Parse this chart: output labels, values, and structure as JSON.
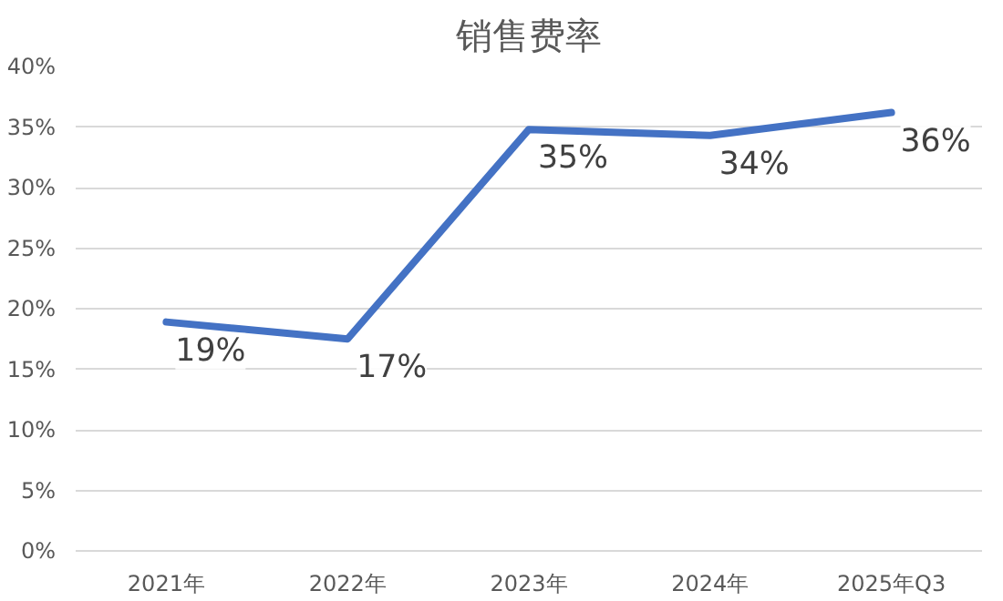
{
  "chart_data": {
    "type": "line",
    "title": "销售费率",
    "categories": [
      "2021年",
      "2022年",
      "2023年",
      "2024年",
      "2025年Q3"
    ],
    "series": [
      {
        "color": "#4472c4",
        "values": [
          18.9,
          17.5,
          34.8,
          34.3,
          36.2
        ],
        "value_labels": [
          "19%",
          "17%",
          "35%",
          "34%",
          "36%"
        ]
      }
    ],
    "ylim": [
      0,
      40
    ],
    "yticks": [
      {
        "value": 0,
        "label": "0%"
      },
      {
        "value": 5,
        "label": "5%"
      },
      {
        "value": 10,
        "label": "10%"
      },
      {
        "value": 15,
        "label": "15%"
      },
      {
        "value": 20,
        "label": "20%"
      },
      {
        "value": 25,
        "label": "25%"
      },
      {
        "value": 30,
        "label": "30%"
      },
      {
        "value": 35,
        "label": "35%"
      },
      {
        "value": 40,
        "label": "40%"
      }
    ],
    "grid": "y",
    "marker": "none",
    "line_style": "solid"
  }
}
